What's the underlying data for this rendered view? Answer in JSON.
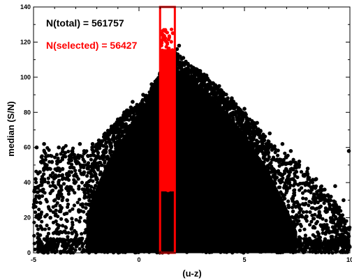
{
  "chart_data": {
    "type": "scatter",
    "title": "",
    "xlabel": "(u-z)",
    "ylabel": "median (S/N)",
    "xlim": [
      -5,
      10
    ],
    "ylim": [
      0,
      140
    ],
    "x_ticks": [
      -5,
      0,
      5,
      10
    ],
    "y_ticks": [
      0,
      20,
      40,
      60,
      80,
      100,
      120,
      140
    ],
    "x_tick_labels": [
      "-5",
      "0",
      "5",
      "10"
    ],
    "y_tick_labels": [
      "0",
      "20",
      "40",
      "60",
      "80",
      "100",
      "120",
      "140"
    ],
    "grid": false,
    "legend": "none",
    "annotations": [
      {
        "text": "N(total) = 561757",
        "color": "#000000"
      },
      {
        "text": "N(selected) = 56427",
        "color": "#ff0000"
      }
    ],
    "selection_box": {
      "x_range": [
        1.0,
        1.7
      ],
      "y_range": [
        0,
        140
      ],
      "color": "#ff0000"
    },
    "series": [
      {
        "color": "#000000",
        "description": "all objects",
        "envelope_x": [
          -5,
          -4.5,
          -4,
          -3.5,
          -3,
          -2.5,
          -2,
          -1.5,
          -1,
          -0.5,
          0,
          0.5,
          1,
          1.5,
          2,
          2.5,
          3,
          3.5,
          4,
          4.5,
          5,
          5.5,
          6,
          6.5,
          7,
          7.5,
          8,
          8.5,
          9,
          9.5,
          10
        ],
        "envelope_y": [
          48,
          62,
          56,
          62,
          60,
          58,
          62,
          70,
          75,
          83,
          85,
          92,
          103,
          116,
          112,
          106,
          103,
          97,
          92,
          86,
          80,
          74,
          66,
          60,
          56,
          52,
          46,
          40,
          34,
          26,
          15
        ],
        "dense_envelope_x": [
          -2.5,
          -2,
          -1.5,
          -1,
          -0.5,
          0,
          0.5,
          1,
          1.5,
          2,
          2.5,
          3,
          3.5,
          4,
          4.5,
          5,
          5.5,
          6,
          6.5,
          7,
          7.5
        ],
        "dense_envelope_y": [
          20,
          38,
          52,
          62,
          70,
          78,
          85,
          98,
          108,
          103,
          98,
          94,
          88,
          82,
          75,
          68,
          58,
          50,
          38,
          26,
          12
        ],
        "outliers": [
          {
            "x": -4.85,
            "y": 60
          },
          {
            "x": -4.7,
            "y": 46
          },
          {
            "x": -4.5,
            "y": 62
          },
          {
            "x": -4.6,
            "y": 55
          },
          {
            "x": -4.3,
            "y": 40
          },
          {
            "x": -4.2,
            "y": 20
          },
          {
            "x": -4.6,
            "y": 5
          },
          {
            "x": -4.0,
            "y": 38
          },
          {
            "x": -3.8,
            "y": 60
          },
          {
            "x": -3.5,
            "y": 57
          },
          {
            "x": -3.2,
            "y": 46
          },
          {
            "x": -3.0,
            "y": 52
          },
          {
            "x": -2.8,
            "y": 62
          },
          {
            "x": -2.6,
            "y": 58
          },
          {
            "x": -3.4,
            "y": 30
          },
          {
            "x": -3.7,
            "y": 25
          },
          {
            "x": -4.9,
            "y": 42
          },
          {
            "x": -4.95,
            "y": 30
          },
          {
            "x": -2.2,
            "y": 62
          },
          {
            "x": -1.9,
            "y": 64
          },
          {
            "x": -1.6,
            "y": 68
          },
          {
            "x": -1.3,
            "y": 72
          },
          {
            "x": -1.0,
            "y": 76
          },
          {
            "x": -0.7,
            "y": 80
          },
          {
            "x": -0.3,
            "y": 86
          },
          {
            "x": 0.2,
            "y": 90
          },
          {
            "x": 0.6,
            "y": 96
          },
          {
            "x": 1.8,
            "y": 116
          },
          {
            "x": 1.9,
            "y": 118
          },
          {
            "x": 2.1,
            "y": 111
          },
          {
            "x": 2.6,
            "y": 104
          },
          {
            "x": 3.2,
            "y": 101
          },
          {
            "x": 3.8,
            "y": 95
          },
          {
            "x": 4.4,
            "y": 88
          },
          {
            "x": 5.0,
            "y": 82
          },
          {
            "x": 5.6,
            "y": 74
          },
          {
            "x": 6.2,
            "y": 68
          },
          {
            "x": 6.8,
            "y": 62
          },
          {
            "x": 7.2,
            "y": 58
          },
          {
            "x": 7.6,
            "y": 52
          },
          {
            "x": 8.0,
            "y": 48
          },
          {
            "x": 8.4,
            "y": 42
          },
          {
            "x": 8.8,
            "y": 36
          },
          {
            "x": 9.1,
            "y": 32
          },
          {
            "x": 9.4,
            "y": 26
          },
          {
            "x": 9.6,
            "y": 20
          },
          {
            "x": 9.8,
            "y": 12
          },
          {
            "x": 9.9,
            "y": 6
          },
          {
            "x": 9.7,
            "y": 30
          },
          {
            "x": 9.3,
            "y": 38
          },
          {
            "x": 8.6,
            "y": 30
          },
          {
            "x": 8.2,
            "y": 36
          },
          {
            "x": 7.8,
            "y": 44
          },
          {
            "x": 9.95,
            "y": 58
          }
        ]
      },
      {
        "color": "#ff0000",
        "description": "selected objects",
        "x_range": [
          1.0,
          1.7
        ],
        "y_range": [
          35,
          128
        ]
      }
    ]
  }
}
